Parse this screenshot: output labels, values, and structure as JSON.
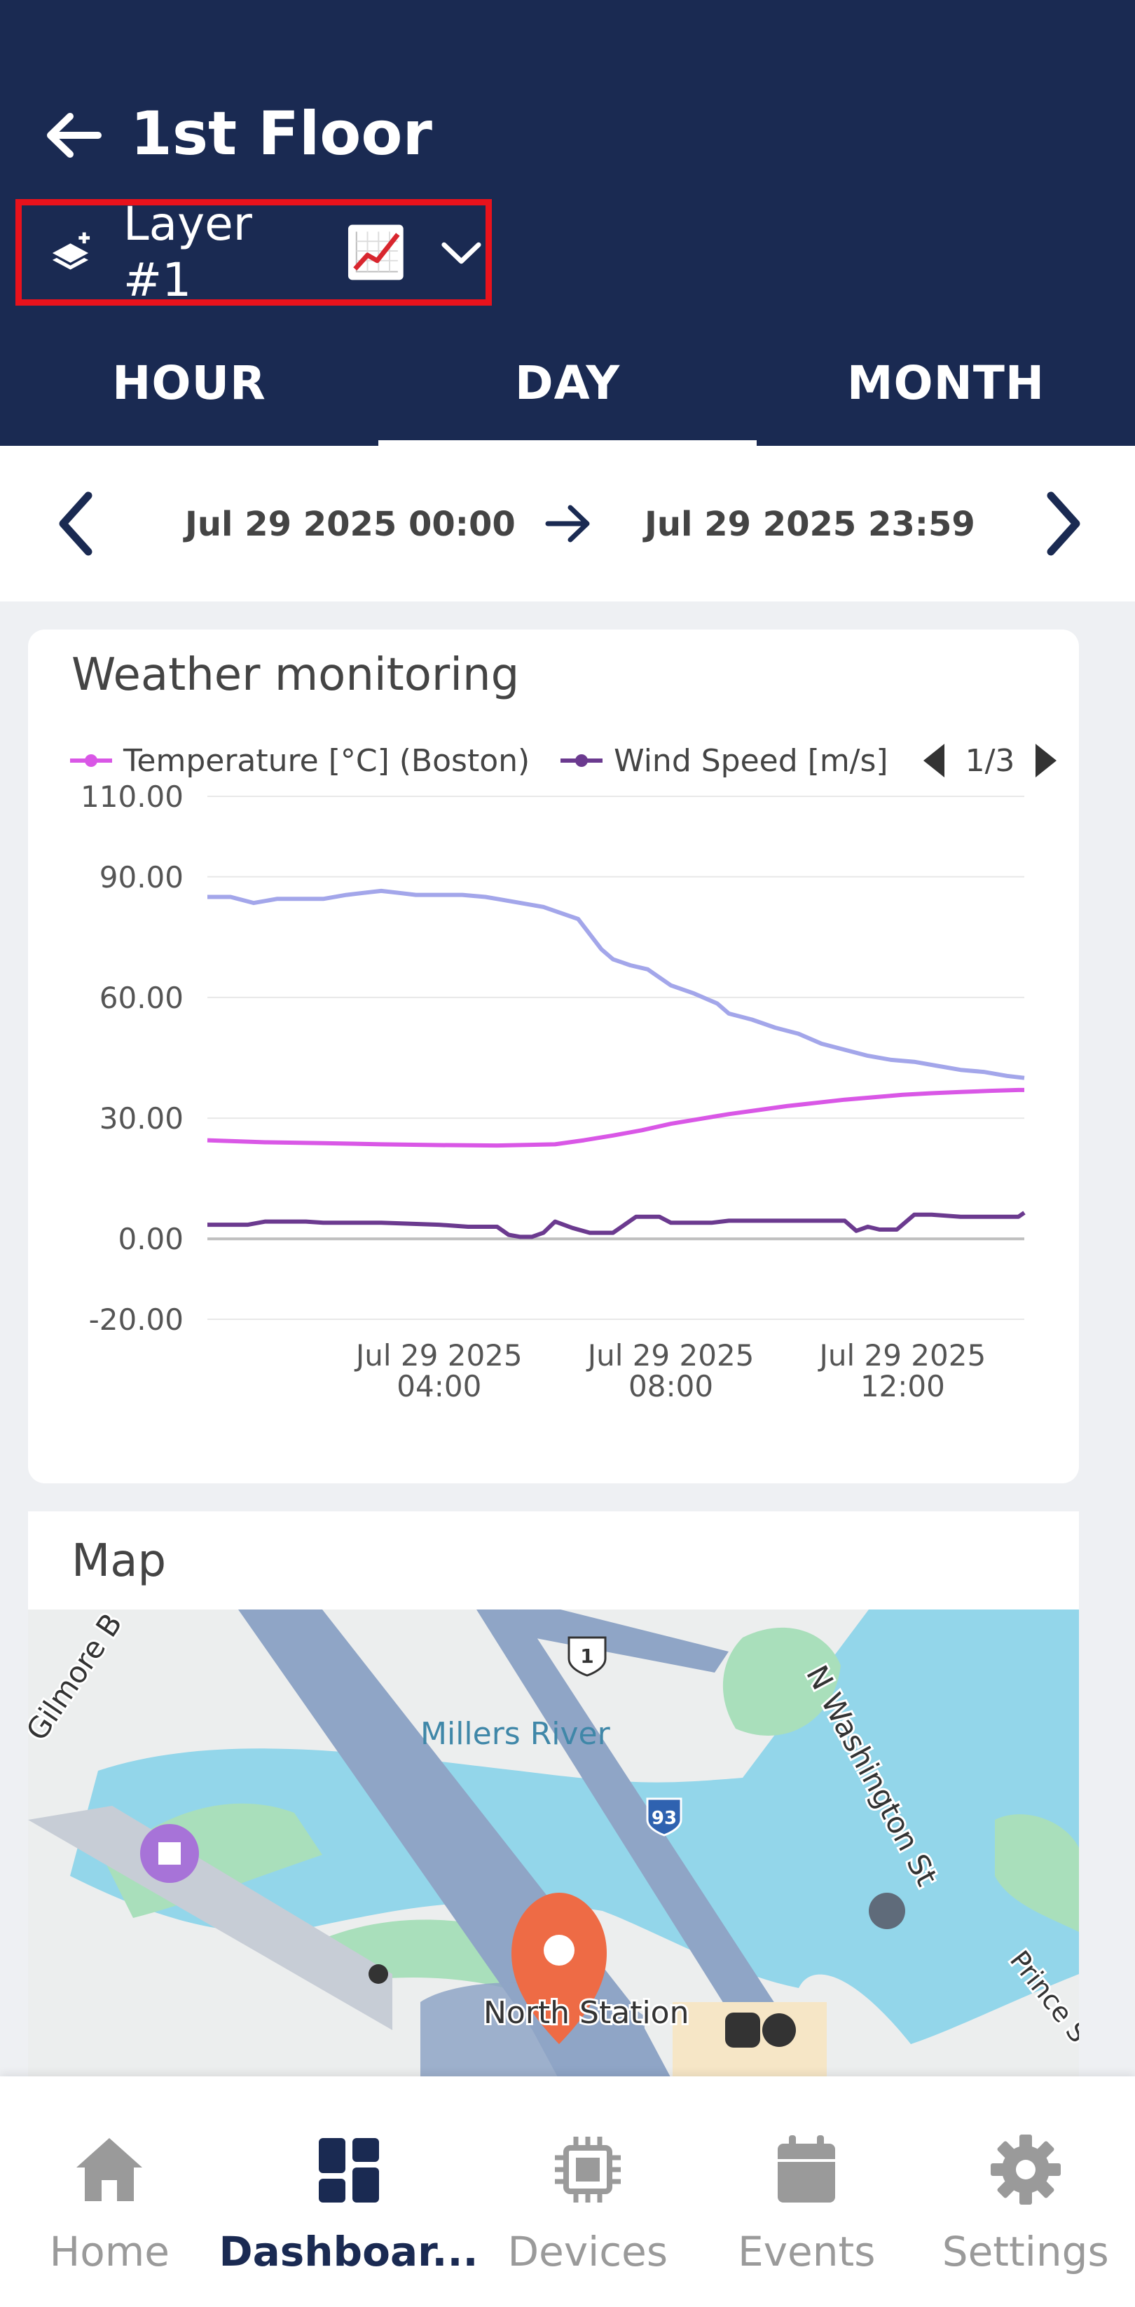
{
  "header": {
    "title": "1st Floor",
    "layer_label": "Layer #1"
  },
  "tabs": [
    {
      "label": "HOUR",
      "active": false
    },
    {
      "label": "DAY",
      "active": true
    },
    {
      "label": "MONTH",
      "active": false
    }
  ],
  "date_range": {
    "start": "Jul 29 2025 00:00",
    "end": "Jul 29 2025 23:59"
  },
  "weather_card": {
    "title": "Weather monitoring",
    "pager": "1/3"
  },
  "chart_data": {
    "type": "line",
    "ylim": [
      -20,
      110
    ],
    "y_ticks": [
      "110.00",
      "90.00",
      "60.00",
      "30.00",
      "0.00",
      "-20.00"
    ],
    "y_tick_values": [
      110,
      90,
      60,
      30,
      0,
      -20
    ],
    "x_ticks": [
      {
        "line1": "Jul 29 2025",
        "line2": "04:00",
        "hour": 4
      },
      {
        "line1": "Jul 29 2025",
        "line2": "08:00",
        "hour": 8
      },
      {
        "line1": "Jul 29 2025",
        "line2": "12:00",
        "hour": 12
      }
    ],
    "x_range_hours": [
      0,
      14.1
    ],
    "series": [
      {
        "name": "Temperature [°C] (Boston)",
        "color": "#d957e6",
        "in_legend": true,
        "x": [
          0,
          1,
          2,
          3,
          4,
          5,
          6,
          6.5,
          7,
          7.5,
          8,
          8.5,
          9,
          9.5,
          10,
          10.5,
          11,
          11.5,
          12,
          12.5,
          13,
          13.5,
          14,
          14.1
        ],
        "y": [
          24.5,
          24.0,
          23.8,
          23.5,
          23.3,
          23.2,
          23.5,
          24.5,
          25.7,
          27.0,
          28.6,
          29.8,
          31.0,
          32.0,
          33.0,
          33.8,
          34.6,
          35.2,
          35.8,
          36.2,
          36.5,
          36.8,
          37.0,
          37.0
        ]
      },
      {
        "name": "Wind Speed [m/s]",
        "color": "#6b3a8f",
        "in_legend": true,
        "x": [
          0,
          0.7,
          1,
          1.7,
          2,
          3,
          4,
          4.5,
          5,
          5.2,
          5.4,
          5.6,
          5.8,
          6,
          6.3,
          6.6,
          7,
          7.4,
          7.8,
          8,
          8.4,
          8.7,
          9,
          9.5,
          10,
          10.5,
          11,
          11.2,
          11.4,
          11.6,
          11.9,
          12.2,
          12.5,
          13,
          13.5,
          14,
          14.1
        ],
        "y": [
          3.5,
          3.5,
          4.3,
          4.3,
          4.0,
          4.0,
          3.5,
          3.0,
          3.0,
          1.0,
          0.5,
          0.5,
          1.5,
          4.3,
          2.7,
          1.5,
          1.5,
          5.5,
          5.5,
          4.0,
          4.0,
          4.0,
          4.5,
          4.5,
          4.5,
          4.5,
          4.5,
          2.0,
          3.0,
          2.3,
          2.3,
          6.0,
          6.0,
          5.5,
          5.5,
          5.5,
          6.5
        ]
      },
      {
        "name": "",
        "color": "#a3a6ea",
        "in_legend": false,
        "x": [
          0,
          0.4,
          0.8,
          1.2,
          1.6,
          2,
          2.4,
          2.7,
          3,
          3.3,
          3.6,
          4,
          4.4,
          4.8,
          5,
          5.4,
          5.8,
          6.1,
          6.4,
          6.8,
          7.0,
          7.3,
          7.6,
          8,
          8.4,
          8.8,
          9,
          9.4,
          9.8,
          10.2,
          10.6,
          11,
          11.4,
          11.8,
          12.2,
          12.6,
          13,
          13.4,
          13.8,
          14.1
        ],
        "y": [
          85.0,
          85.0,
          83.5,
          84.5,
          84.5,
          84.5,
          85.5,
          86.0,
          86.5,
          86.0,
          85.5,
          85.5,
          85.5,
          85.0,
          84.5,
          83.5,
          82.5,
          81.0,
          79.5,
          72.0,
          69.5,
          68.0,
          67.0,
          63.0,
          61.0,
          58.5,
          56.0,
          54.5,
          52.5,
          51.0,
          48.5,
          47.0,
          45.5,
          44.5,
          44.0,
          43.0,
          42.0,
          41.5,
          40.5,
          40.0
        ]
      }
    ],
    "legend_position": "top",
    "grid": true
  },
  "map_card": {
    "title": "Map",
    "labels": {
      "river": "Millers River",
      "station": "North Station",
      "street1": "N Washington St",
      "street2": "Gilmore B",
      "street3": "Prince S",
      "highway": "1",
      "interstate": "93"
    }
  },
  "bottom_nav": [
    {
      "label": "Home",
      "icon": "home-icon",
      "active": false
    },
    {
      "label": "Dashboar...",
      "icon": "dashboard-icon",
      "active": true
    },
    {
      "label": "Devices",
      "icon": "chip-icon",
      "active": false
    },
    {
      "label": "Events",
      "icon": "calendar-icon",
      "active": false
    },
    {
      "label": "Settings",
      "icon": "gear-icon",
      "active": false
    }
  ]
}
